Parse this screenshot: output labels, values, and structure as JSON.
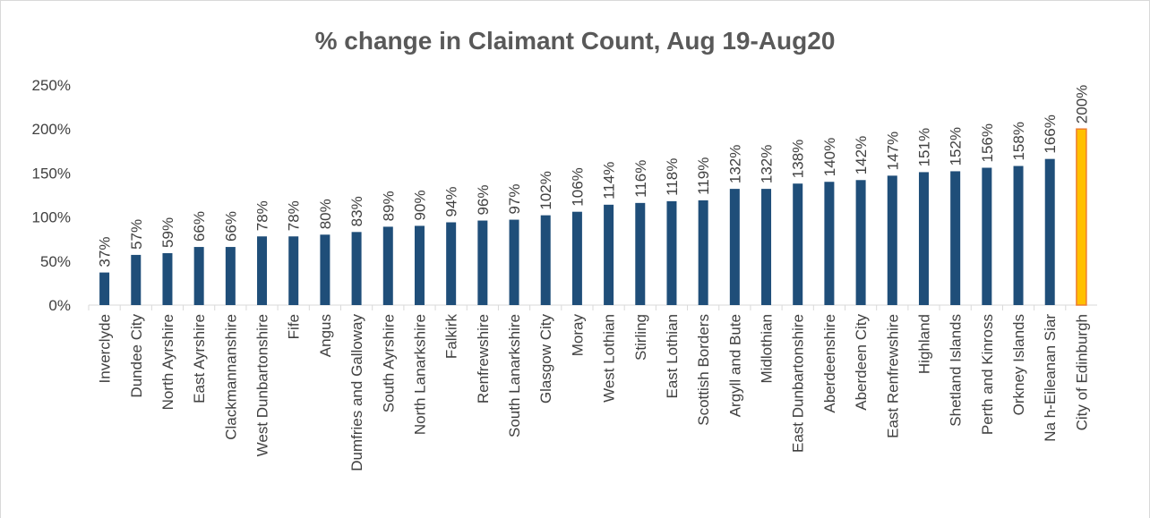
{
  "chart_data": {
    "type": "bar",
    "title": "% change in Claimant Count, Aug 19-Aug20",
    "categories": [
      "Inverclyde",
      "Dundee City",
      "North Ayrshire",
      "East Ayrshire",
      "Clackmannanshire",
      "West Dunbartonshire",
      "Fife",
      "Angus",
      "Dumfries and Galloway",
      "South Ayrshire",
      "North Lanarkshire",
      "Falkirk",
      "Renfrewshire",
      "South Lanarkshire",
      "Glasgow City",
      "Moray",
      "West Lothian",
      "Stirling",
      "East Lothian",
      "Scottish Borders",
      "Argyll and Bute",
      "Midlothian",
      "East Dunbartonshire",
      "Aberdeenshire",
      "Aberdeen City",
      "East Renfrewshire",
      "Highland",
      "Shetland Islands",
      "Perth and Kinross",
      "Orkney Islands",
      "Na h-Eileanan Siar",
      "City of Edinburgh"
    ],
    "values": [
      37,
      57,
      59,
      66,
      66,
      78,
      78,
      80,
      83,
      89,
      90,
      94,
      96,
      97,
      102,
      106,
      114,
      116,
      118,
      119,
      132,
      132,
      138,
      140,
      142,
      147,
      151,
      152,
      156,
      158,
      166,
      200
    ],
    "value_labels": [
      "37%",
      "57%",
      "59%",
      "66%",
      "66%",
      "78%",
      "78%",
      "80%",
      "83%",
      "89%",
      "90%",
      "94%",
      "96%",
      "97%",
      "102%",
      "106%",
      "114%",
      "116%",
      "118%",
      "119%",
      "132%",
      "132%",
      "138%",
      "140%",
      "142%",
      "147%",
      "151%",
      "152%",
      "156%",
      "158%",
      "166%",
      "200%"
    ],
    "colors": [
      "#1f4e79",
      "#1f4e79",
      "#1f4e79",
      "#1f4e79",
      "#1f4e79",
      "#1f4e79",
      "#1f4e79",
      "#1f4e79",
      "#1f4e79",
      "#1f4e79",
      "#1f4e79",
      "#1f4e79",
      "#1f4e79",
      "#1f4e79",
      "#1f4e79",
      "#1f4e79",
      "#1f4e79",
      "#1f4e79",
      "#1f4e79",
      "#1f4e79",
      "#1f4e79",
      "#1f4e79",
      "#1f4e79",
      "#1f4e79",
      "#1f4e79",
      "#1f4e79",
      "#1f4e79",
      "#1f4e79",
      "#1f4e79",
      "#1f4e79",
      "#1f4e79",
      "#ffc000"
    ],
    "ylim": [
      0,
      250
    ],
    "yticks": [
      {
        "value": 0,
        "label": "0%"
      },
      {
        "value": 50,
        "label": "50%"
      },
      {
        "value": 100,
        "label": "100%"
      },
      {
        "value": 150,
        "label": "150%"
      },
      {
        "value": 200,
        "label": "200%"
      },
      {
        "value": 250,
        "label": "250%"
      }
    ],
    "grid": false
  }
}
